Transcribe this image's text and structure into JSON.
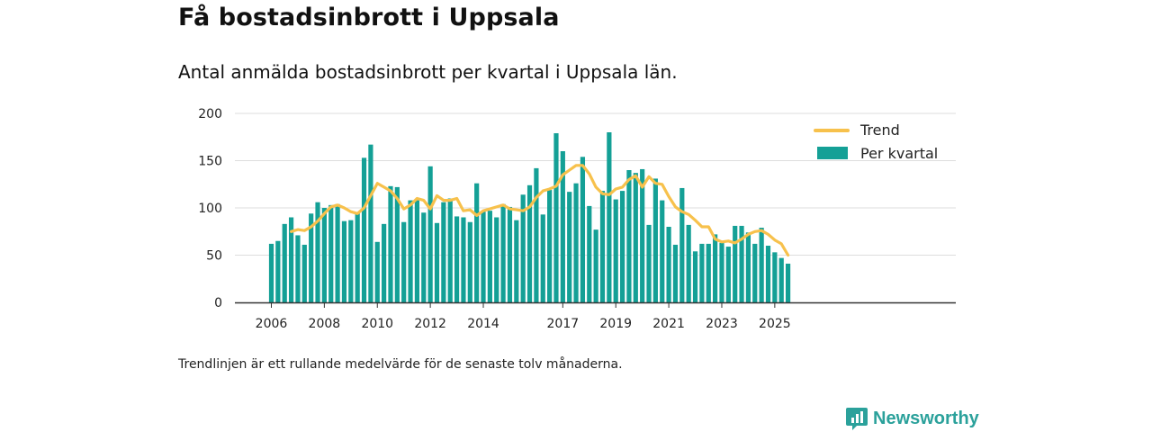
{
  "title": "Få bostadsinbrott i Uppsala",
  "subtitle": "Antal anmälda bostadsinbrott per kvartal i Uppsala län.",
  "footnote": "Trendlinjen är ett rullande medelvärde för de senaste tolv månaderna.",
  "brand": {
    "name": "Newsworthy",
    "color": "#2ba19b"
  },
  "colors": {
    "bar": "#14a096",
    "trend": "#f7c14c",
    "grid": "#dddddd",
    "axis": "#333333"
  },
  "chart_data": {
    "type": "bar",
    "title": "Antal anmälda bostadsinbrott per kvartal i Uppsala län.",
    "xlabel": "",
    "ylabel": "",
    "ylim": [
      0,
      200
    ],
    "yticks": [
      0,
      50,
      100,
      150,
      200
    ],
    "xticks": [
      "2006",
      "2008",
      "2010",
      "2012",
      "2014",
      "2017",
      "2019",
      "2021",
      "2023",
      "2025"
    ],
    "legend_position": "top-right",
    "start_year": 2006,
    "series": [
      {
        "name": "Per kvartal",
        "type": "bar",
        "values": [
          62,
          65,
          83,
          90,
          71,
          61,
          94,
          106,
          100,
          103,
          104,
          86,
          87,
          95,
          153,
          167,
          64,
          83,
          123,
          122,
          85,
          108,
          108,
          95,
          144,
          84,
          106,
          110,
          91,
          90,
          85,
          126,
          96,
          97,
          90,
          104,
          101,
          87,
          114,
          124,
          142,
          93,
          119,
          179,
          160,
          117,
          126,
          154,
          102,
          77,
          118,
          180,
          109,
          118,
          140,
          137,
          141,
          82,
          131,
          108,
          80,
          61,
          121,
          82,
          54,
          62,
          62,
          72,
          63,
          59,
          81,
          81,
          74,
          62,
          79,
          60,
          53,
          47,
          41
        ]
      },
      {
        "name": "Trend",
        "type": "line",
        "values": [
          null,
          null,
          null,
          75,
          77,
          76,
          80,
          86,
          94,
          101,
          103,
          100,
          96,
          94,
          100,
          113,
          126,
          122,
          118,
          110,
          99,
          103,
          110,
          108,
          99,
          113,
          108,
          108,
          110,
          97,
          98,
          92,
          97,
          99,
          101,
          103,
          99,
          98,
          97,
          101,
          111,
          118,
          120,
          123,
          135,
          140,
          145,
          145,
          136,
          122,
          115,
          114,
          120,
          122,
          130,
          134,
          122,
          133,
          126,
          125,
          112,
          101,
          96,
          93,
          87,
          80,
          80,
          67,
          64,
          65,
          63,
          67,
          72,
          75,
          76,
          72,
          66,
          62,
          50
        ]
      }
    ]
  }
}
